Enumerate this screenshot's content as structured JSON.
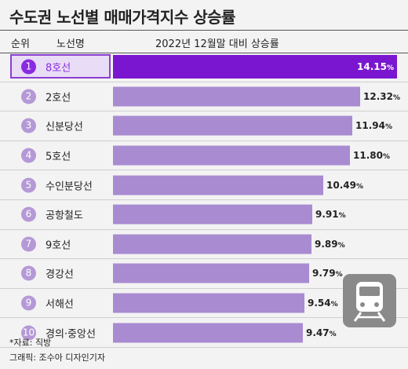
{
  "title": "수도권 노선별 매매가격지수 상승률",
  "header": {
    "rank_label": "순위",
    "line_label": "노선명",
    "metric_label": "2022년 12월말 대비 상승률"
  },
  "footer": {
    "source": "*자료: 직방",
    "credit": "그래픽: 조수아 디자인기자"
  },
  "colors": {
    "bar": "#a98bd1",
    "highlight_bar": "#7a16d0",
    "highlight_bg": "#e9dcf6",
    "rank_circle": "#b599d6"
  },
  "icon": "train-icon",
  "chart_data": {
    "type": "bar",
    "orientation": "horizontal",
    "title": "수도권 노선별 매매가격지수 상승률",
    "xlabel": "2022년 12월말 대비 상승률",
    "unit": "%",
    "ranks": [
      "1",
      "2",
      "3",
      "4",
      "5",
      "6",
      "7",
      "8",
      "9",
      "10"
    ],
    "categories": [
      "8호선",
      "2호선",
      "신분당선",
      "5호선",
      "수인분당선",
      "공항철도",
      "9호선",
      "경강선",
      "서해선",
      "경의·중앙선"
    ],
    "values": [
      14.15,
      12.32,
      11.94,
      11.8,
      10.49,
      9.91,
      9.89,
      9.79,
      9.54,
      9.47
    ],
    "value_labels": [
      "14.15",
      "12.32",
      "11.94",
      "11.80",
      "10.49",
      "9.91",
      "9.89",
      "9.79",
      "9.54",
      "9.47"
    ],
    "highlight_index": 0,
    "xlim": [
      0,
      14.15
    ]
  }
}
